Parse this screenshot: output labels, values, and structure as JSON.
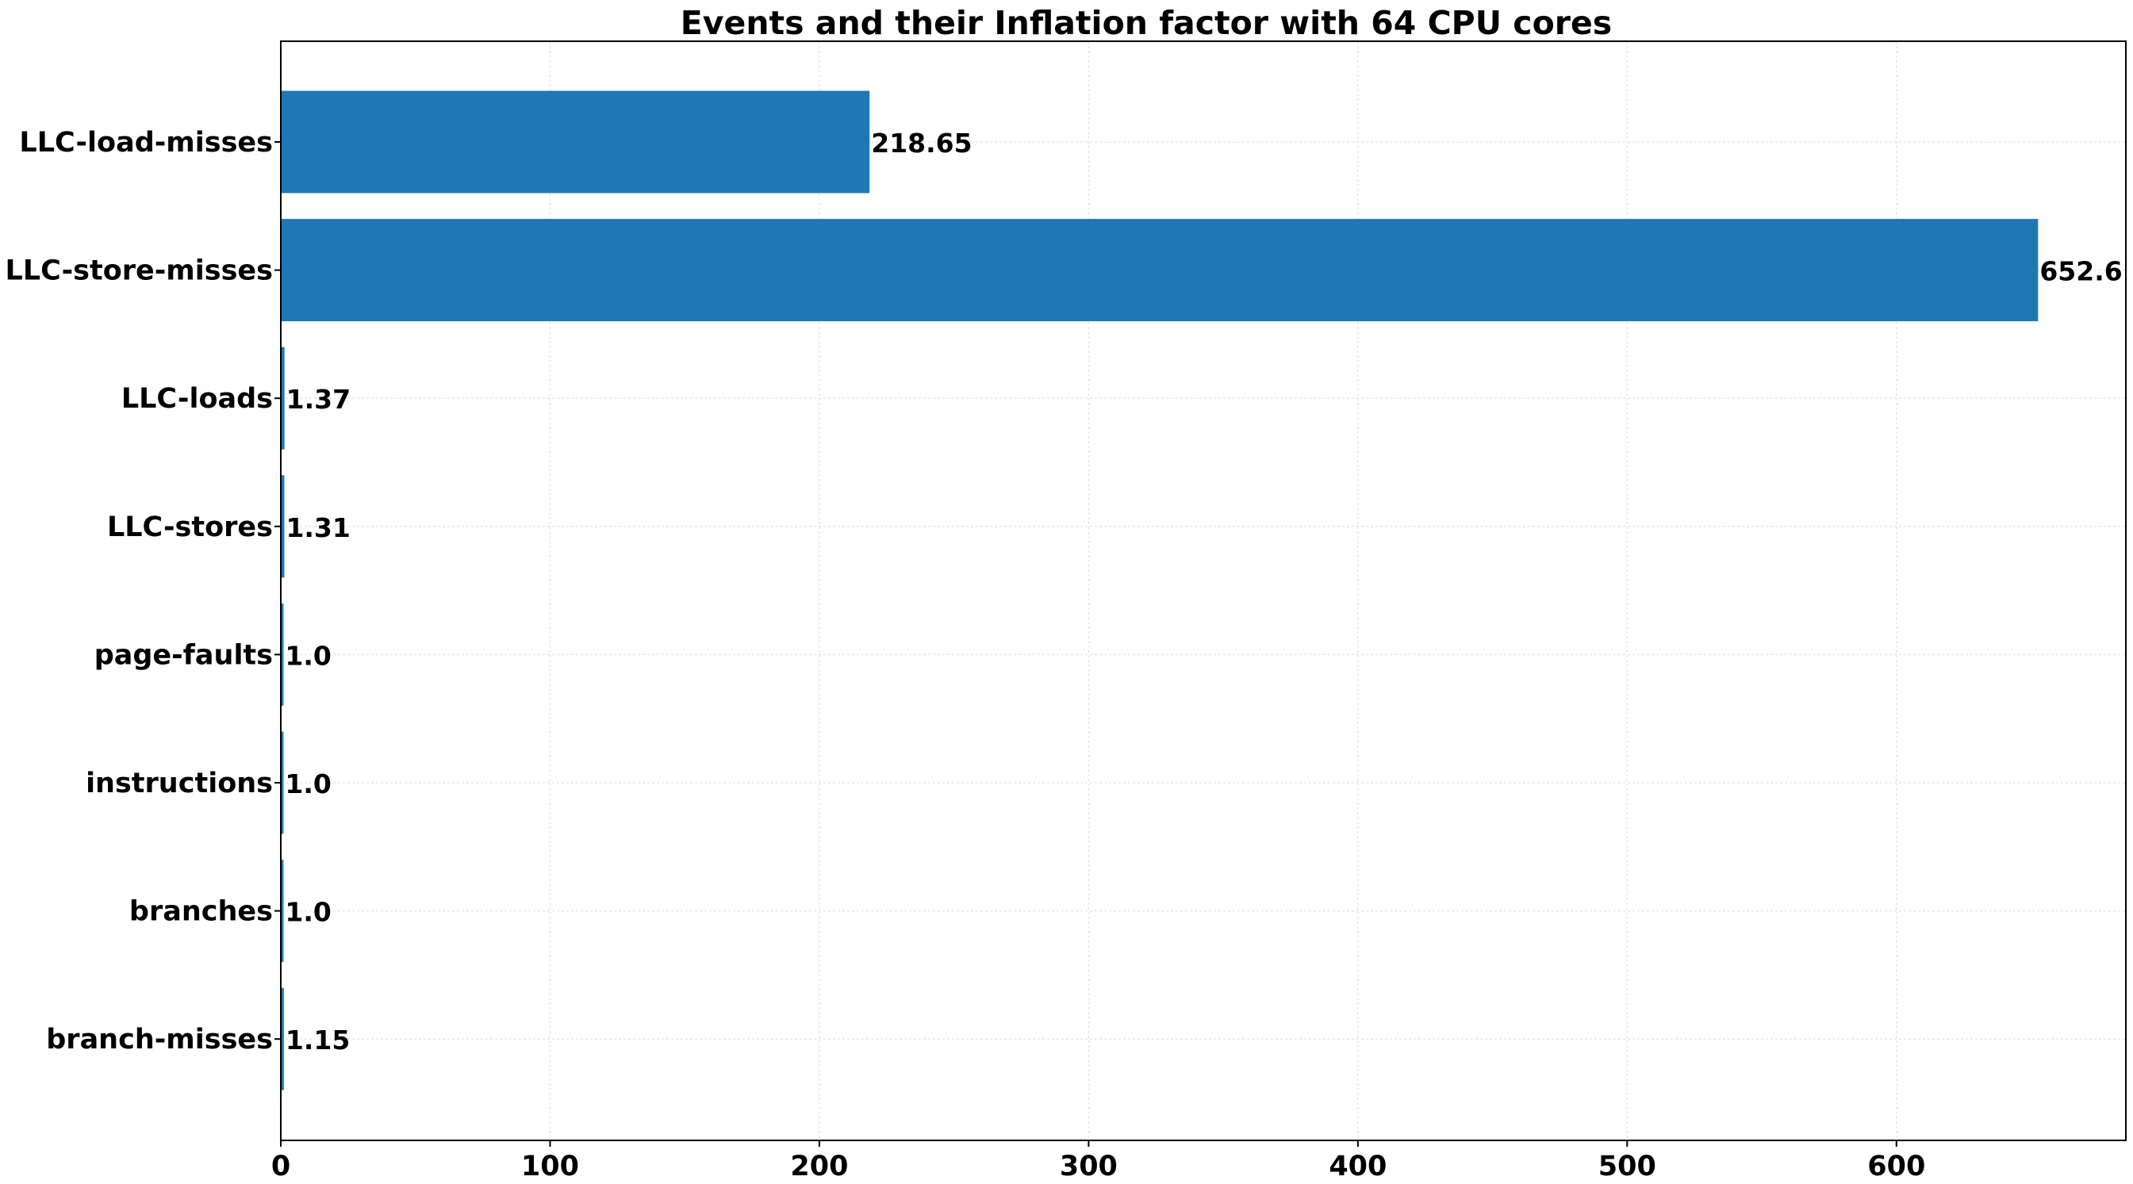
{
  "chart_data": {
    "type": "bar",
    "orientation": "horizontal",
    "title": "Events and their Inflation factor with 64 CPU cores",
    "xlabel": "",
    "ylabel": "",
    "categories": [
      "LLC-load-misses",
      "LLC-store-misses",
      "LLC-loads",
      "LLC-stores",
      "page-faults",
      "instructions",
      "branches",
      "branch-misses "
    ],
    "values": [
      218.65,
      652.6,
      1.37,
      1.31,
      1.0,
      1.0,
      1.0,
      1.15
    ],
    "value_labels": [
      "218.65",
      "652.6",
      "1.37",
      "1.31",
      "1.0",
      "1.0",
      "1.0",
      "1.15"
    ],
    "xlim": [
      0,
      685.2
    ],
    "xticks": [
      0,
      100,
      200,
      300,
      400,
      500,
      600
    ],
    "grid": true,
    "bar_color": "#1f77b4"
  }
}
